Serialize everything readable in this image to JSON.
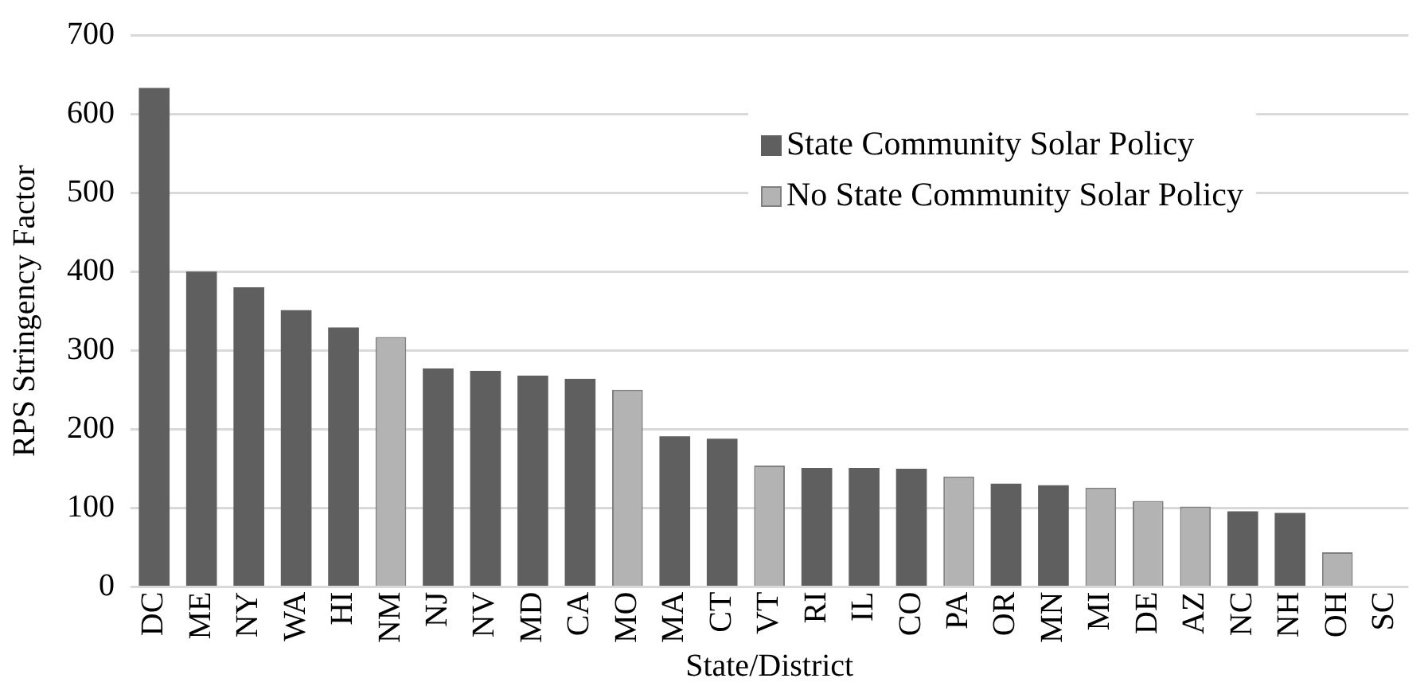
{
  "chart_data": {
    "type": "bar",
    "stacked": true,
    "xlabel": "State/District",
    "ylabel": "RPS Stringency Factor",
    "categories": [
      "DC",
      "ME",
      "NY",
      "WA",
      "HI",
      "NM",
      "NJ",
      "NV",
      "MD",
      "CA",
      "MO",
      "MA",
      "CT",
      "VT",
      "RI",
      "IL",
      "CO",
      "PA",
      "OR",
      "MN",
      "MI",
      "DE",
      "AZ",
      "NC",
      "NH",
      "OH",
      "SC"
    ],
    "series": [
      {
        "name": "State Community Solar Policy",
        "color": "#5f5f5f",
        "values": [
          633,
          400,
          380,
          351,
          329,
          null,
          277,
          274,
          268,
          264,
          null,
          191,
          188,
          null,
          151,
          151,
          150,
          null,
          131,
          129,
          null,
          null,
          null,
          96,
          94,
          null,
          null
        ]
      },
      {
        "name": "No State Community Solar Policy",
        "color": "#b3b3b3",
        "values": [
          null,
          null,
          null,
          null,
          null,
          317,
          null,
          null,
          null,
          null,
          250,
          null,
          null,
          154,
          null,
          null,
          null,
          140,
          null,
          null,
          126,
          109,
          102,
          null,
          null,
          44,
          null
        ]
      }
    ],
    "ylim": [
      0,
      700
    ],
    "yticks": [
      0,
      100,
      200,
      300,
      400,
      500,
      600,
      700
    ],
    "grid": "y",
    "legend": "top right"
  }
}
